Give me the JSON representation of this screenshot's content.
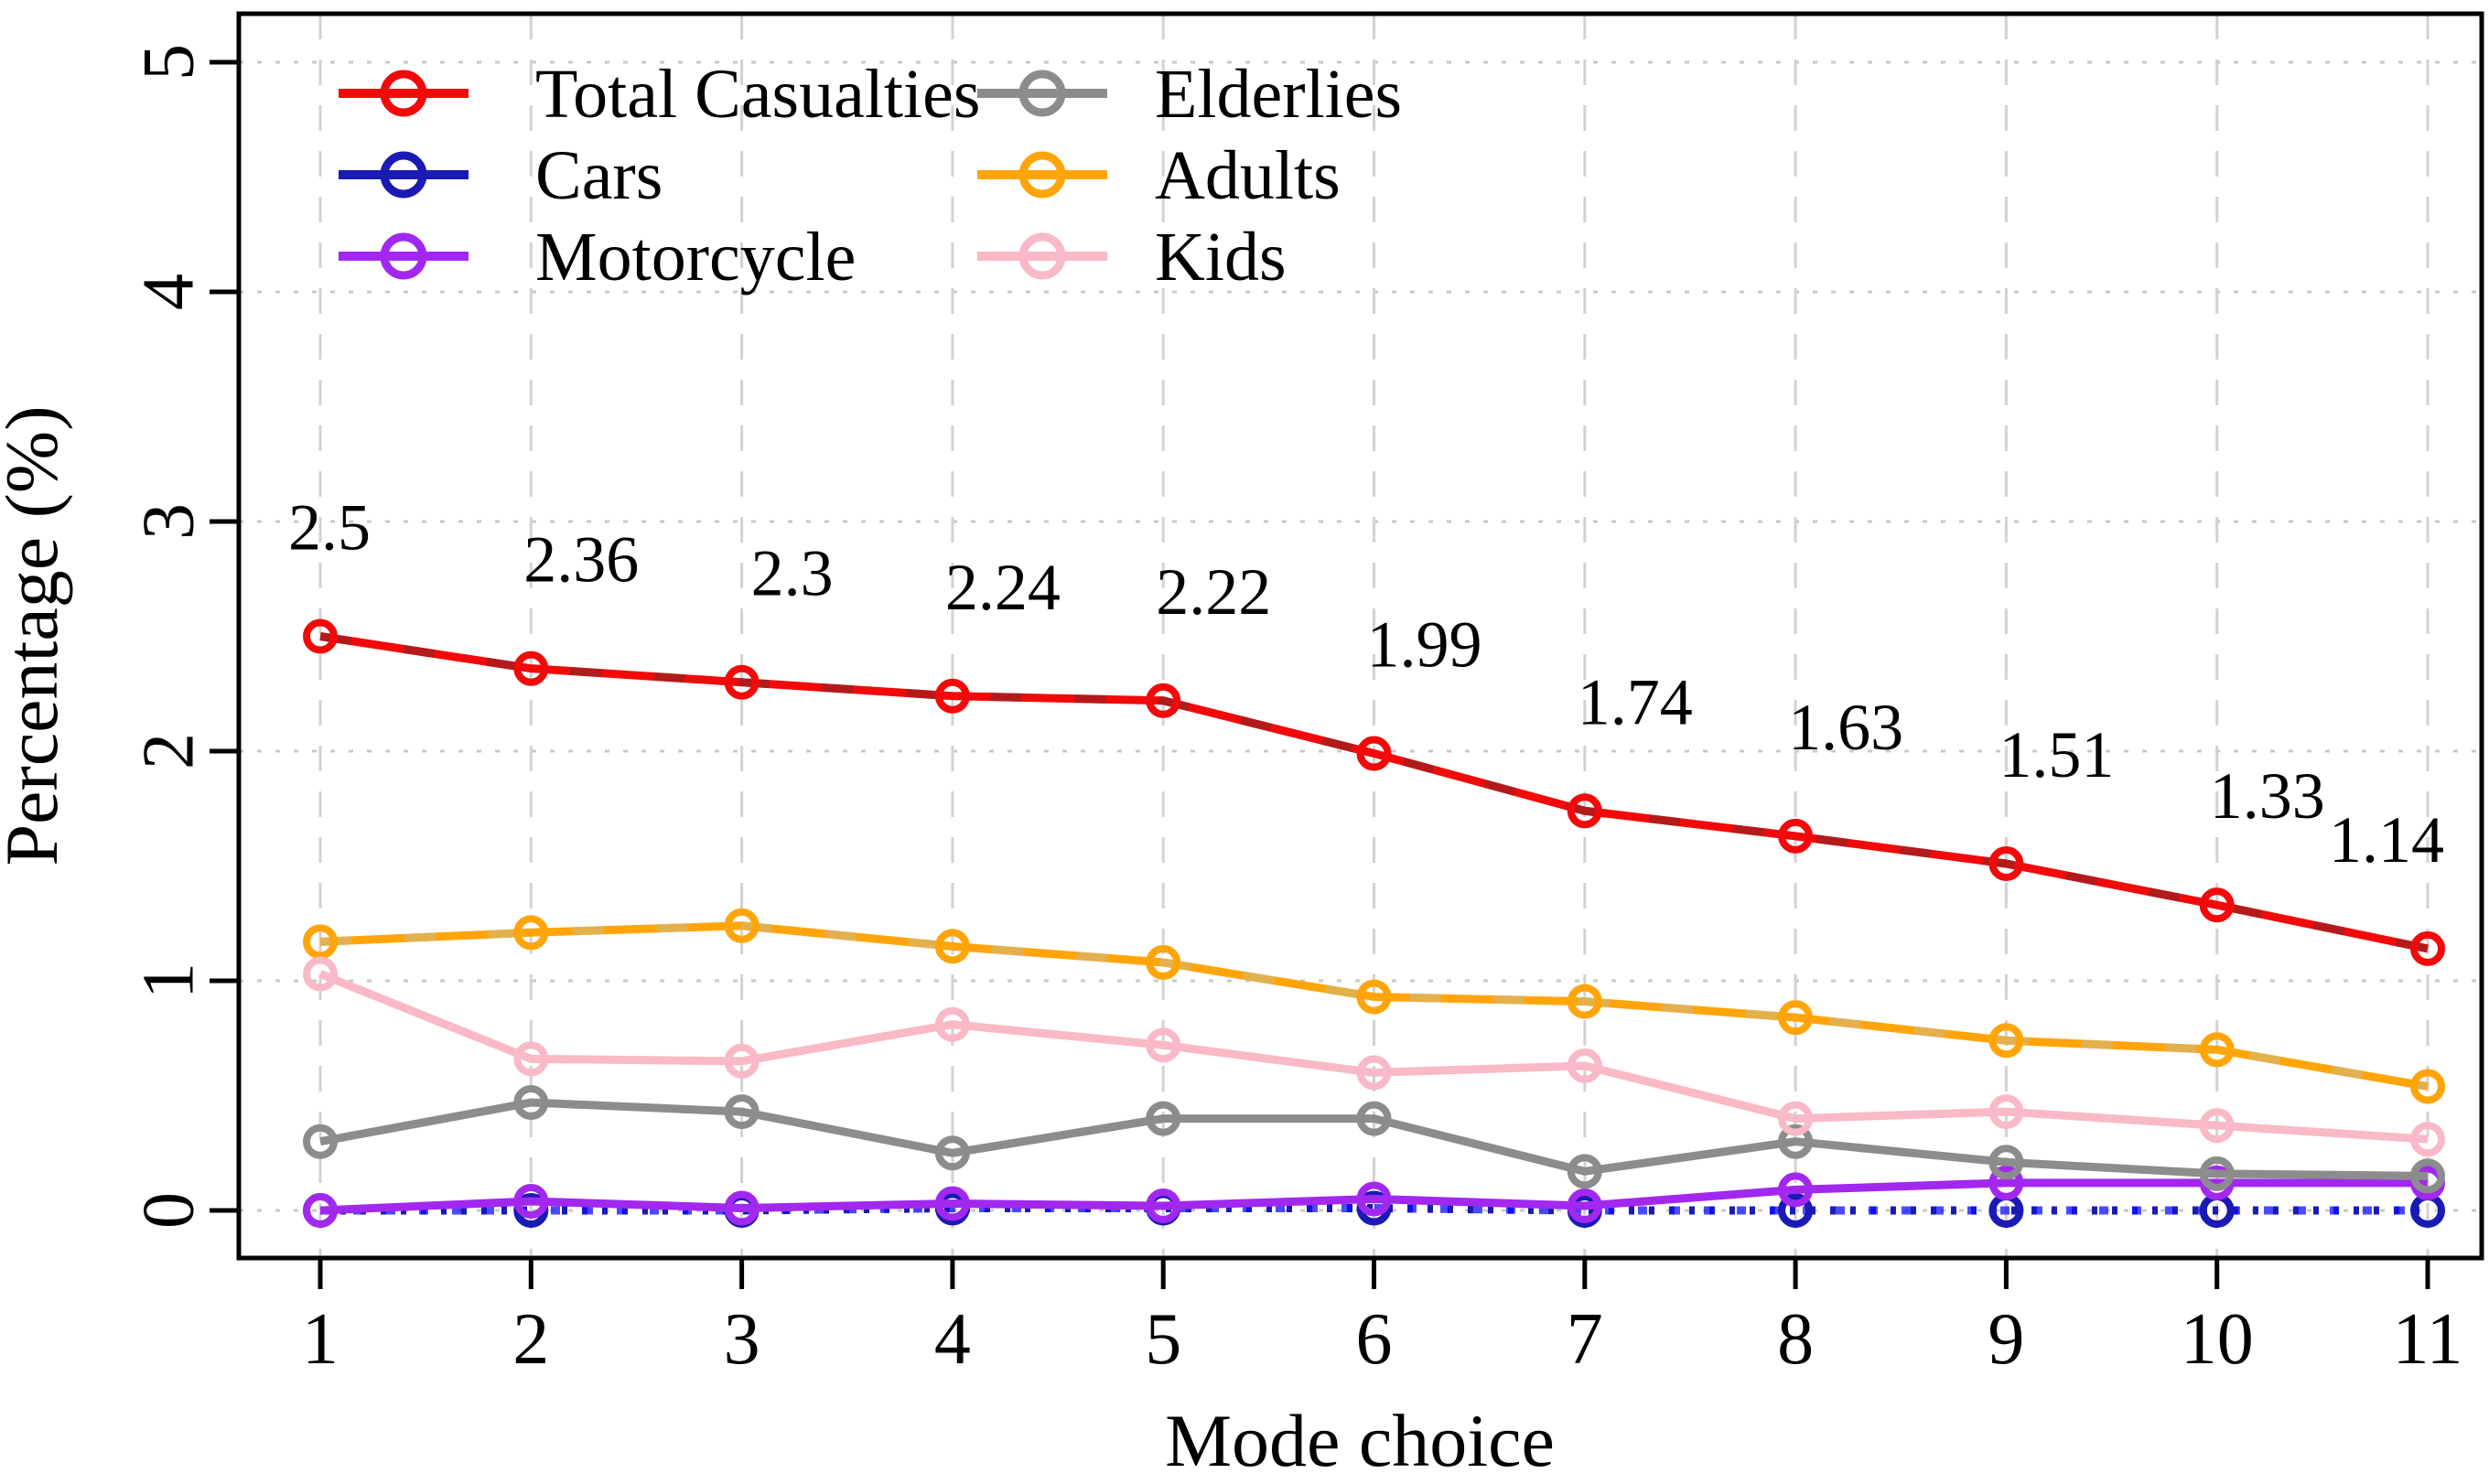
{
  "page": {
    "background": "#ffffff"
  },
  "chart_data": {
    "type": "line",
    "title": "",
    "xlabel": "Mode choice",
    "ylabel": "Percentage (%)",
    "x": [
      1,
      2,
      3,
      4,
      5,
      6,
      7,
      8,
      9,
      10,
      11
    ],
    "x_tick_labels": [
      "1",
      "2",
      "3",
      "4",
      "5",
      "6",
      "7",
      "8",
      "9",
      "10",
      "11"
    ],
    "yticks": [
      0,
      1,
      2,
      3,
      4,
      5
    ],
    "ylim": [
      0,
      5
    ],
    "xlim": [
      0.6,
      11.25
    ],
    "grid": "dotted",
    "grid_color": "#c9c9c9",
    "axis_color": "#000000",
    "label_color": "#000000",
    "legend_position": "top-left",
    "legend_columns": [
      [
        0,
        1,
        2
      ],
      [
        3,
        4,
        5
      ]
    ],
    "series": [
      {
        "name": "Total Casualties",
        "color": "#f20a0a",
        "overlay_dash_color": "#9e2121",
        "line_style": "solid",
        "values": [
          2.5,
          2.36,
          2.3,
          2.24,
          2.22,
          1.99,
          1.74,
          1.63,
          1.51,
          1.33,
          1.14
        ],
        "point_labels": [
          "2.5",
          "2.36",
          "2.3",
          "2.24",
          "2.22",
          "1.99",
          "1.74",
          "1.63",
          "1.51",
          "1.33",
          "1.14"
        ]
      },
      {
        "name": "Cars",
        "color": "#1a1ab4",
        "overlay_dash_color": "#0d0dff",
        "line_style": "dotted",
        "values": [
          0.0,
          0.0,
          0.0,
          0.01,
          0.01,
          0.01,
          0.0,
          0.0,
          0.0,
          0.0,
          0.0
        ]
      },
      {
        "name": "Motorcycle",
        "color": "#a228f0",
        "line_style": "solid",
        "values": [
          0.0,
          0.04,
          0.01,
          0.03,
          0.02,
          0.05,
          0.02,
          0.09,
          0.12,
          0.12,
          0.12
        ]
      },
      {
        "name": "Elderlies",
        "color": "#8c8c8c",
        "line_style": "solid",
        "values": [
          0.3,
          0.47,
          0.43,
          0.25,
          0.4,
          0.4,
          0.17,
          0.3,
          0.21,
          0.16,
          0.15
        ]
      },
      {
        "name": "Adults",
        "color": "#ffa50a",
        "overlay_dash_color": "#d9b466",
        "line_style": "solid",
        "values": [
          1.17,
          1.21,
          1.24,
          1.15,
          1.08,
          0.93,
          0.91,
          0.84,
          0.74,
          0.7,
          0.54
        ]
      },
      {
        "name": "Kids",
        "color": "#f9b9c6",
        "line_style": "solid",
        "values": [
          1.03,
          0.66,
          0.65,
          0.81,
          0.72,
          0.6,
          0.63,
          0.4,
          0.43,
          0.37,
          0.31
        ]
      }
    ]
  }
}
